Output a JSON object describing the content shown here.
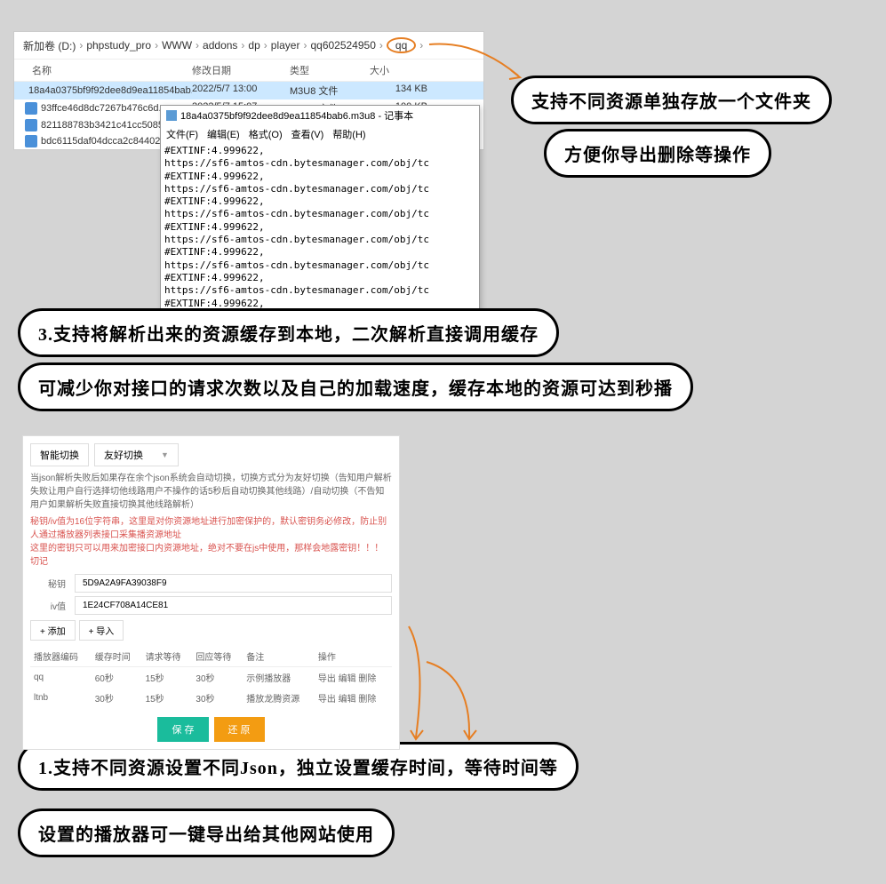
{
  "breadcrumb": [
    "新加卷 (D:)",
    "phpstudy_pro",
    "WWW",
    "addons",
    "dp",
    "player",
    "qq602524950",
    "qq"
  ],
  "file_headers": {
    "name": "名称",
    "date": "修改日期",
    "type": "类型",
    "size": "大小"
  },
  "files": [
    {
      "name": "18a4a0375bf9f92dee8d9ea11854bab...",
      "date": "2022/5/7 13:00",
      "type": "M3U8 文件",
      "size": "134 KB",
      "selected": true
    },
    {
      "name": "93ffce46d8dc7267b476c6d...",
      "date": "2022/5/7 15:07",
      "type": "M3U8 文件",
      "size": "100 KB",
      "selected": false
    },
    {
      "name": "821188783b3421c41cc5085",
      "date": "",
      "type": "",
      "size": "",
      "selected": false
    },
    {
      "name": "bdc6115daf04dcca2c84402",
      "date": "",
      "type": "",
      "size": "",
      "selected": false
    }
  ],
  "notepad": {
    "title": "18a4a0375bf9f92dee8d9ea11854bab6.m3u8 - 记事本",
    "menu": [
      "文件(F)",
      "编辑(E)",
      "格式(O)",
      "查看(V)",
      "帮助(H)"
    ],
    "body": "#EXTINF:4.999622,\nhttps://sf6-amtos-cdn.bytesmanager.com/obj/tc\n#EXTINF:4.999622,\nhttps://sf6-amtos-cdn.bytesmanager.com/obj/tc\n#EXTINF:4.999622,\nhttps://sf6-amtos-cdn.bytesmanager.com/obj/tc\n#EXTINF:4.999622,\nhttps://sf6-amtos-cdn.bytesmanager.com/obj/tc\n#EXTINF:4.999622,\nhttps://sf6-amtos-cdn.bytesmanager.com/obj/tc\n#EXTINF:4.999622,\nhttps://sf6-amtos-cdn.bytesmanager.com/obj/tc\n#EXTINF:4.999622,"
  },
  "annotations": {
    "a1": "支持不同资源单独存放一个文件夹",
    "a2": "方便你导出删除等操作",
    "a3": "3.支持将解析出来的资源缓存到本地，二次解析直接调用缓存",
    "a4": "可减少你对接口的请求次数以及自己的加载速度，缓存本地的资源可达到秒播",
    "a5": "1.支持不同资源设置不同Json，独立设置缓存时间，等待时间等",
    "a6": "设置的播放器可一键导出给其他网站使用"
  },
  "settings": {
    "dd1": "智能切换",
    "dd2": "友好切换",
    "desc": "当json解析失败后如果存在余个json系统会自动切换，切换方式分为友好切换（告知用户解析失败让用户自行选择切他线路用户不操作的话5秒后自动切换其他线路）/自动切换（不告知用户如果解析失败直接切换其他线路解析）",
    "warn": "秘钥/iv值为16位字符串，这里是对你资源地址进行加密保护的，默认密钥务必修改，防止别人通过播放器列表接口采集播资源地址\n这里的密钥只可以用来加密接口内资源地址，绝对不要在js中使用，那样会地露密钥！！！切记",
    "secret_label": "秘钥",
    "secret_value": "5D9A2A9FA39038F9",
    "iv_label": "iv值",
    "iv_value": "1E24CF708A14CE81",
    "btn_add": "+ 添加",
    "btn_import": "+ 导入",
    "table_headers": [
      "播放器编码",
      "缓存时间",
      "请求等待",
      "回应等待",
      "备注",
      "操作"
    ],
    "table_rows": [
      [
        "qq",
        "60秒",
        "15秒",
        "30秒",
        "示例播放器",
        "导出  编辑  删除"
      ],
      [
        "ltnb",
        "30秒",
        "15秒",
        "30秒",
        "播放龙腾资源",
        "导出  编辑  删除"
      ]
    ],
    "btn_save": "保 存",
    "btn_reset": "还 原"
  }
}
